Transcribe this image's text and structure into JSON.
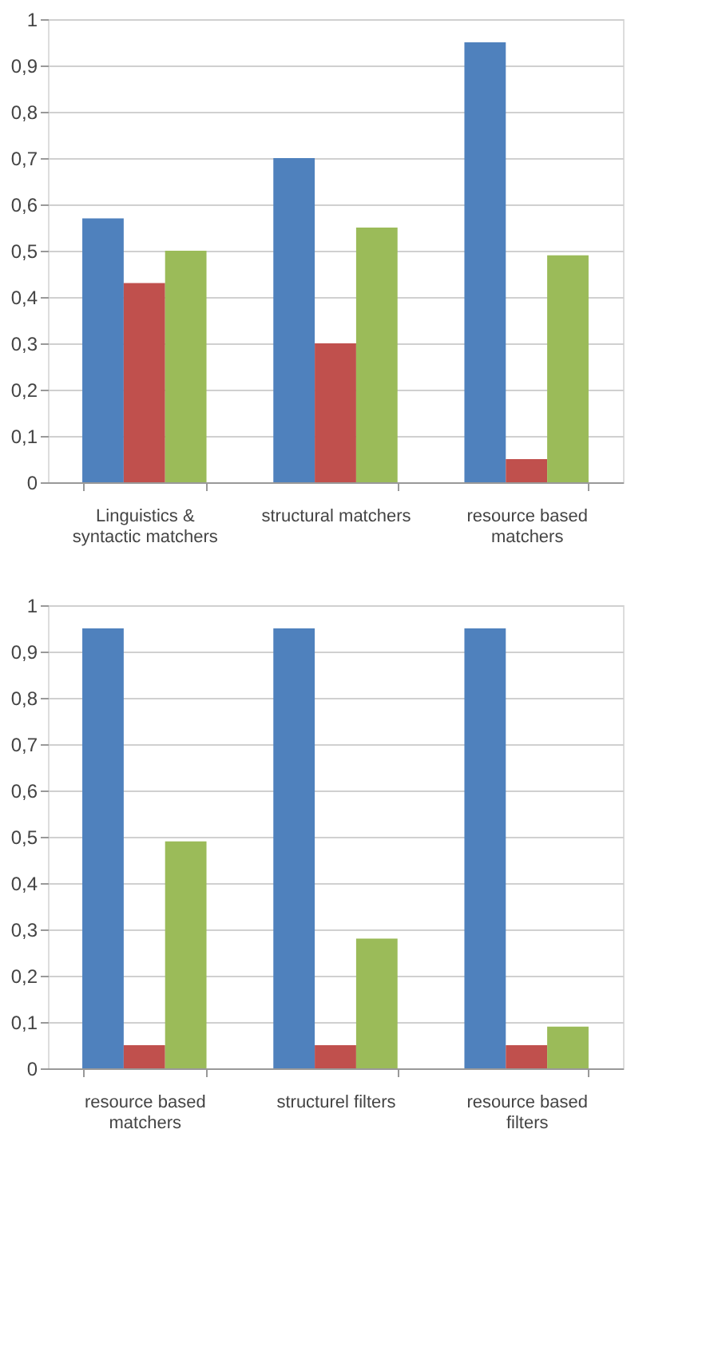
{
  "chart_data": [
    {
      "type": "bar",
      "categories": [
        "Linguistics & syntactic matchers",
        "structural matchers",
        "resource based matchers"
      ],
      "series": [
        {
          "color": "#4f81bd",
          "values": [
            0.57,
            0.7,
            0.95
          ]
        },
        {
          "color": "#c0504d",
          "values": [
            0.43,
            0.3,
            0.05
          ]
        },
        {
          "color": "#9bbb59",
          "values": [
            0.5,
            0.55,
            0.49
          ]
        }
      ],
      "ylim": [
        0,
        1
      ],
      "yticks": [
        0,
        {
          "value": 0.1,
          "label": "0,1"
        },
        {
          "value": 0.2,
          "label": "0,2"
        },
        {
          "value": 0.3,
          "label": "0,3"
        },
        {
          "value": 0.4,
          "label": "0,4"
        },
        {
          "value": 0.5,
          "label": "0,5"
        },
        {
          "value": 0.6,
          "label": "0,6"
        },
        {
          "value": 0.7,
          "label": "0,7"
        },
        {
          "value": 0.8,
          "label": "0,8"
        },
        {
          "value": 0.9,
          "label": "0,9"
        },
        1
      ],
      "grid": "y",
      "legend": false
    },
    {
      "type": "bar",
      "categories": [
        "resource based matchers",
        "structurel filters",
        "resource based filters"
      ],
      "series": [
        {
          "color": "#4f81bd",
          "values": [
            0.95,
            0.95,
            0.95
          ]
        },
        {
          "color": "#c0504d",
          "values": [
            0.05,
            0.05,
            0.05
          ]
        },
        {
          "color": "#9bbb59",
          "values": [
            0.49,
            0.28,
            0.09
          ]
        }
      ],
      "ylim": [
        0,
        1
      ],
      "yticks": [
        0,
        {
          "value": 0.1,
          "label": "0,1"
        },
        {
          "value": 0.2,
          "label": "0,2"
        },
        {
          "value": 0.3,
          "label": "0,3"
        },
        {
          "value": 0.4,
          "label": "0,4"
        },
        {
          "value": 0.5,
          "label": "0,5"
        },
        {
          "value": 0.6,
          "label": "0,6"
        },
        {
          "value": 0.7,
          "label": "0,7"
        },
        {
          "value": 0.8,
          "label": "0,8"
        },
        {
          "value": 0.9,
          "label": "0,9"
        },
        1
      ],
      "grid": "y",
      "legend": false
    }
  ]
}
